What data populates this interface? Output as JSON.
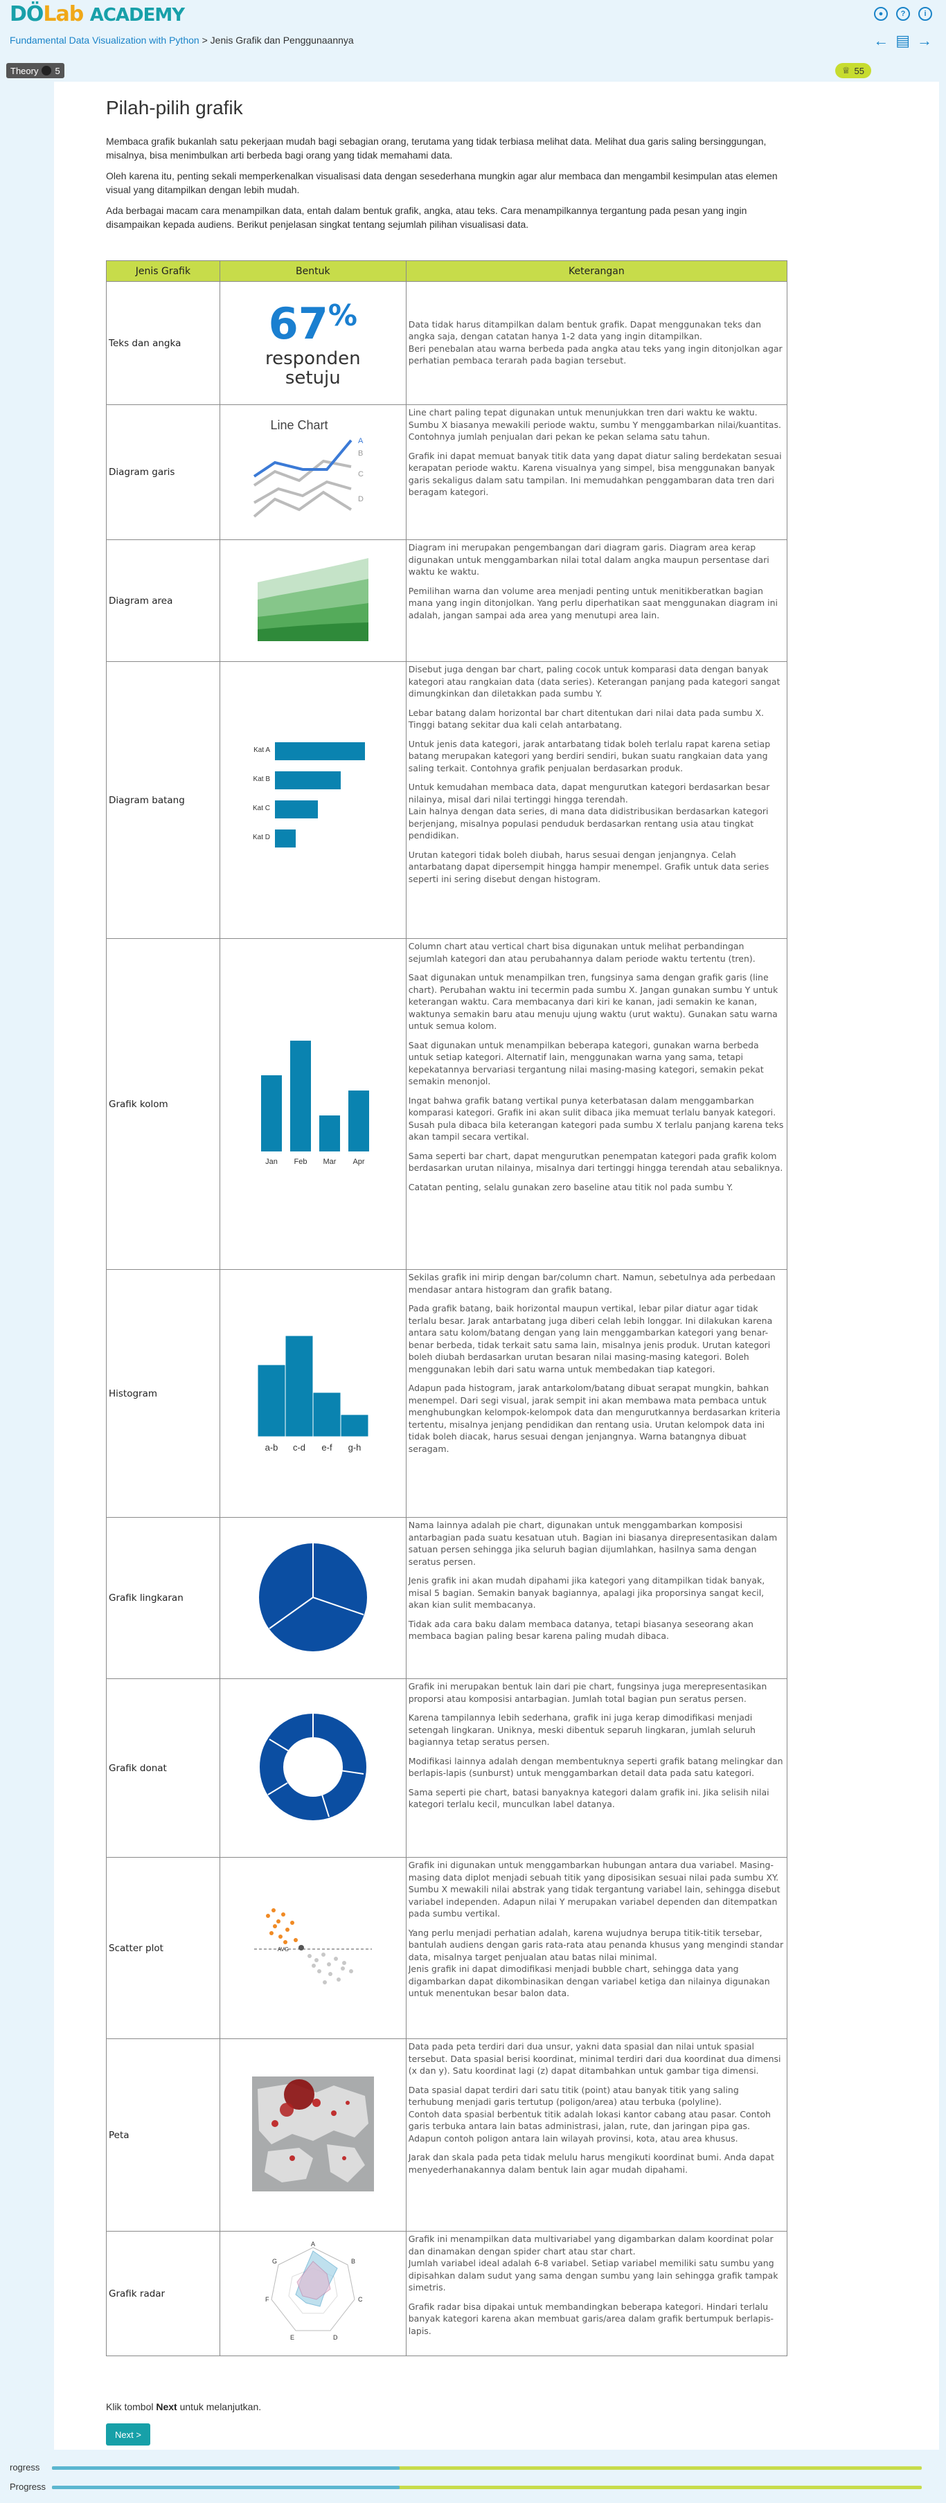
{
  "header": {
    "logo_d": "D",
    "logo_o": "Ö",
    "logo_lab": "Lab",
    "logo_academy": "ACADEMY",
    "course_link": "Fundamental Data Visualization with Python",
    "separator": " > ",
    "chapter": "Jenis Grafik dan Penggunaannya",
    "icons": [
      "user-icon",
      "help-icon",
      "info-icon"
    ],
    "nav_icons": [
      "arrow-left-icon",
      "contents-icon",
      "arrow-right-icon"
    ]
  },
  "badges": {
    "theory_label": "Theory",
    "theory_count": "5",
    "points": "55"
  },
  "page": {
    "title": "Pilah-pilih grafik",
    "intro": [
      "Membaca grafik bukanlah satu pekerjaan mudah bagi sebagian orang, terutama yang tidak terbiasa melihat data. Melihat dua garis saling bersinggungan, misalnya, bisa menimbulkan arti berbeda bagi orang yang tidak memahami data.",
      "Oleh karena itu, penting sekali memperkenalkan visualisasi data dengan sesederhana mungkin agar alur membaca dan mengambil kesimpulan atas elemen visual yang ditampilkan dengan lebih mudah.",
      "Ada berbagai macam cara menampilkan data, entah dalam bentuk grafik, angka, atau teks. Cara menampilkannya tergantung pada pesan yang ingin disampaikan kepada audiens. Berikut penjelasan singkat tentang sejumlah pilihan visualisasi data."
    ]
  },
  "table": {
    "headers": [
      "Jenis Grafik",
      "Bentuk",
      "Keterangan"
    ],
    "rows": [
      {
        "name": "Teks dan angka",
        "viz": {
          "big_number": "67",
          "pct": "%",
          "line1": "responden",
          "line2": "setuju"
        },
        "desc": [
          "Data tidak harus ditampilkan dalam bentuk grafik. Dapat menggunakan teks dan angka saja, dengan catatan hanya 1-2 data yang ingin ditampilkan.\nBeri penebalan atau warna berbeda pada angka atau teks yang ingin ditonjolkan agar perhatian pembaca terarah pada bagian tersebut."
        ]
      },
      {
        "name": "Diagram garis",
        "viz": {
          "title": "Line Chart",
          "labels": [
            "A",
            "B",
            "C",
            "D"
          ]
        },
        "desc": [
          "Line chart paling tepat digunakan untuk menunjukkan tren dari waktu ke waktu. Sumbu X biasanya mewakili periode waktu, sumbu Y menggambarkan nilai/kuantitas. Contohnya jumlah penjualan dari pekan ke pekan selama satu tahun.",
          "Grafik ini dapat memuat banyak titik data yang dapat diatur saling berdekatan sesuai kerapatan periode waktu. Karena visualnya yang simpel, bisa menggunakan banyak garis sekaligus dalam satu tampilan. Ini memudahkan penggambaran data tren dari beragam kategori."
        ]
      },
      {
        "name": "Diagram area",
        "viz": {},
        "desc": [
          "Diagram ini merupakan pengembangan dari diagram garis. Diagram area kerap digunakan untuk menggambarkan nilai total dalam angka maupun persentase dari waktu ke waktu.",
          "Pemilihan warna dan volume area menjadi penting untuk menitikberatkan bagian mana yang ingin ditonjolkan. Yang perlu diperhatikan saat menggunakan diagram ini adalah, jangan sampai ada area yang menutupi area lain."
        ]
      },
      {
        "name": "Diagram batang",
        "viz": {
          "categories": [
            "Kat A",
            "Kat B",
            "Kat C",
            "Kat D"
          ]
        },
        "desc": [
          "Disebut juga dengan bar chart, paling cocok untuk komparasi data dengan banyak kategori atau rangkaian data (data series). Keterangan panjang pada kategori sangat dimungkinkan dan diletakkan pada sumbu Y.",
          "Lebar batang dalam horizontal bar chart ditentukan dari nilai data pada sumbu X. Tinggi batang sekitar dua kali celah antarbatang.",
          "Untuk jenis data kategori, jarak antarbatang tidak boleh terlalu rapat karena setiap batang merupakan kategori yang berdiri sendiri, bukan suatu rangkaian data yang saling terkait. Contohnya grafik penjualan berdasarkan produk.",
          "Untuk kemudahan membaca data, dapat mengurutkan kategori berdasarkan besar nilainya, misal dari nilai tertinggi hingga terendah.\nLain halnya dengan data series, di mana data didistribusikan berdasarkan kategori berjenjang, misalnya populasi penduduk berdasarkan rentang usia atau tingkat pendidikan.",
          "Urutan kategori tidak boleh diubah, harus sesuai dengan jenjangnya. Celah antarbatang dapat dipersempit hingga hampir menempel. Grafik untuk data series seperti ini sering disebut dengan histogram."
        ]
      },
      {
        "name": "Grafik kolom",
        "viz": {
          "categories": [
            "Jan",
            "Feb",
            "Mar",
            "Apr"
          ]
        },
        "desc": [
          "Column chart atau vertical chart bisa digunakan untuk melihat perbandingan sejumlah kategori dan atau perubahannya dalam periode waktu tertentu (tren).",
          "Saat digunakan untuk menampilkan tren, fungsinya sama dengan grafik garis (line chart). Perubahan waktu ini tecermin pada sumbu X. Jangan gunakan sumbu Y untuk keterangan waktu. Cara membacanya dari kiri ke kanan, jadi semakin ke kanan, waktunya semakin baru atau menuju ujung waktu (urut waktu). Gunakan satu warna untuk semua kolom.",
          "Saat digunakan untuk menampilkan beberapa kategori, gunakan warna berbeda untuk setiap kategori. Alternatif lain, menggunakan warna yang sama, tetapi kepekatannya bervariasi tergantung nilai masing-masing kategori, semakin pekat semakin menonjol.",
          "Ingat bahwa grafik batang vertikal punya keterbatasan dalam menggambarkan komparasi kategori. Grafik ini akan sulit dibaca jika memuat terlalu banyak kategori. Susah pula dibaca bila keterangan kategori pada sumbu X terlalu panjang karena teks akan tampil secara vertikal.",
          "Sama seperti bar chart, dapat mengurutkan penempatan kategori pada grafik kolom berdasarkan urutan nilainya, misalnya dari tertinggi hingga terendah atau sebaliknya.",
          "Catatan penting, selalu gunakan zero baseline atau titik nol pada sumbu Y."
        ]
      },
      {
        "name": "Histogram",
        "viz": {
          "categories": [
            "a-b",
            "c-d",
            "e-f",
            "g-h"
          ]
        },
        "desc": [
          "Sekilas grafik ini mirip dengan bar/column chart. Namun, sebetulnya ada perbedaan mendasar antara histogram dan grafik batang.",
          "Pada grafik batang, baik horizontal maupun vertikal, lebar pilar diatur agar tidak terlalu besar. Jarak antarbatang juga diberi celah lebih longgar. Ini dilakukan karena antara satu kolom/batang dengan yang lain menggambarkan kategori yang benar-benar berbeda, tidak terkait satu sama lain, misalnya jenis produk. Urutan kategori boleh diubah berdasarkan urutan besaran nilai masing-masing kategori. Boleh menggunakan lebih dari satu warna untuk membedakan tiap kategori.",
          "Adapun pada histogram, jarak antarkolom/batang dibuat serapat mungkin, bahkan menempel. Dari segi visual, jarak sempit ini akan membawa mata pembaca untuk menghubungkan kelompok-kelompok data dan mengurutkannya berdasarkan kriteria tertentu, misalnya jenjang pendidikan dan rentang usia. Urutan kelompok data ini tidak boleh diacak, harus sesuai dengan jenjangnya. Warna batangnya dibuat seragam."
        ]
      },
      {
        "name": "Grafik lingkaran",
        "viz": {},
        "desc": [
          "Nama lainnya adalah pie chart, digunakan untuk menggambarkan komposisi antarbagian pada suatu kesatuan utuh. Bagian ini biasanya direpresentasikan dalam satuan persen sehingga jika seluruh bagian dijumlahkan, hasilnya sama dengan seratus persen.",
          "Jenis grafik ini akan mudah dipahami jika kategori yang ditampilkan tidak banyak, misal 5 bagian. Semakin banyak bagiannya, apalagi jika proporsinya sangat kecil, akan kian sulit membacanya.",
          "Tidak ada cara baku dalam membaca datanya, tetapi biasanya seseorang akan membaca bagian paling besar karena paling mudah dibaca."
        ]
      },
      {
        "name": "Grafik donat",
        "viz": {},
        "desc": [
          "Grafik ini merupakan bentuk lain dari pie chart, fungsinya juga merepresentasikan proporsi atau komposisi antarbagian. Jumlah total bagian pun seratus persen.",
          "Karena tampilannya lebih sederhana, grafik ini juga kerap dimodifikasi menjadi setengah lingkaran. Uniknya, meski dibentuk separuh lingkaran, jumlah seluruh bagiannya tetap seratus persen.",
          "Modifikasi lainnya adalah dengan membentuknya seperti grafik batang melingkar dan berlapis-lapis (sunburst) untuk menggambarkan detail data pada satu kategori.",
          "Sama seperti pie chart, batasi banyaknya kategori dalam grafik ini. Jika selisih nilai kategori terlalu kecil, munculkan label datanya."
        ]
      },
      {
        "name": "Scatter plot",
        "viz": {
          "avg_label": "AVG"
        },
        "desc": [
          "Grafik ini digunakan untuk menggambarkan hubungan antara dua variabel. Masing-masing data diplot menjadi sebuah titik yang diposisikan sesuai nilai pada sumbu XY. Sumbu X mewakili nilai abstrak yang tidak tergantung variabel lain, sehingga disebut variabel independen. Adapun nilai Y merupakan variabel dependen dan ditempatkan pada sumbu vertikal.",
          "Yang perlu menjadi perhatian adalah, karena wujudnya berupa titik-titik tersebar, bantulah audiens dengan garis rata-rata atau penanda khusus yang mengindi standar data, misalnya target penjualan atau batas nilai minimal.\nJenis grafik ini dapat dimodifikasi menjadi bubble chart, sehingga data yang digambarkan dapat dikombinasikan dengan variabel ketiga dan nilainya digunakan untuk menentukan besar balon data."
        ]
      },
      {
        "name": "Peta",
        "viz": {},
        "desc": [
          "Data pada peta terdiri dari dua unsur, yakni data spasial dan nilai untuk spasial tersebut. Data spasial berisi koordinat, minimal terdiri dari dua koordinat dua dimensi (x dan y). Satu koordinat lagi (z) dapat ditambahkan untuk gambar tiga dimensi.",
          "Data spasial dapat terdiri dari satu titik (point) atau banyak titik yang saling terhubung menjadi garis tertutup (poligon/area) atau terbuka (polyline).\nContoh data spasial berbentuk titik adalah lokasi kantor cabang atau pasar. Contoh garis terbuka antara lain batas administrasi, jalan, rute, dan jaringan pipa gas. Adapun contoh poligon antara lain wilayah provinsi, kota, atau area khusus.",
          "Jarak dan skala pada peta tidak melulu harus mengikuti koordinat bumi. Anda dapat menyederhanakannya dalam bentuk lain agar mudah dipahami."
        ]
      },
      {
        "name": "Grafik radar",
        "viz": {
          "axes": [
            "A",
            "B",
            "C",
            "D",
            "E",
            "F",
            "G"
          ]
        },
        "desc": [
          "Grafik ini menampilkan data multivariabel yang digambarkan dalam koordinat polar dan dinamakan dengan spider chart atau star chart.\nJumlah variabel ideal adalah 6-8 variabel. Setiap variabel memiliki satu sumbu yang dipisahkan dalam sudut yang sama dengan sumbu yang lain sehingga grafik tampak simetris.",
          "Grafik radar bisa dipakai untuk membandingkan beberapa kategori. Hindari terlalu banyak kategori karena akan membuat garis/area dalam grafik bertumpuk berlapis-lapis."
        ]
      }
    ]
  },
  "footer": {
    "instruction_pre": "Klik tombol ",
    "instruction_bold": "Next",
    "instruction_post": " untuk melanjutkan.",
    "next_label": "Next >"
  },
  "progress": [
    {
      "label": "rogress",
      "fraction": 0.4
    },
    {
      "label": "Progress",
      "fraction": 0.4
    }
  ],
  "colors": {
    "brand_teal": "#18a0a9",
    "brand_orange": "#f0a818",
    "accent_lime": "#c7dc4a",
    "chart_blue": "#0a83b0",
    "pie_blue": "#0b4ea2"
  }
}
